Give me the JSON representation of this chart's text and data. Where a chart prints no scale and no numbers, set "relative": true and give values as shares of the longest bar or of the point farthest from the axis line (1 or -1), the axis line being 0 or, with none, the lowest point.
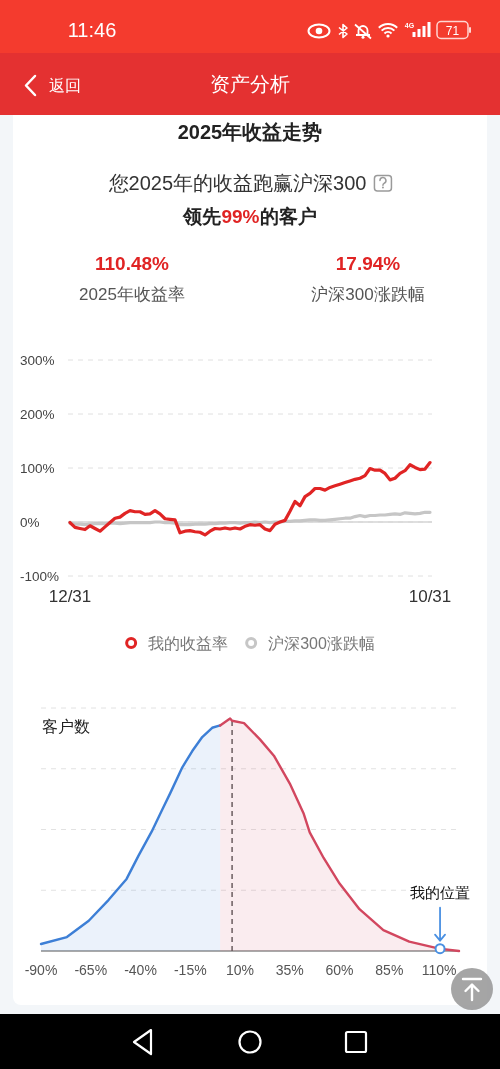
{
  "chart_data": [
    {
      "type": "other",
      "title": "资产分析",
      "annotations": [
        "11:46",
        "4G",
        "71",
        "返回"
      ]
    },
    {
      "type": "other",
      "title": "2025年收益走势",
      "subtitle": "您2025年的收益跑赢沪深300",
      "annotations": [
        "领先",
        "99%",
        "的客户",
        "110.48%",
        "2025年收益率",
        "17.94%",
        "沪深300涨跌幅"
      ]
    },
    {
      "type": "line",
      "categories": [
        "12/31",
        null,
        null,
        null,
        null,
        null,
        null,
        null,
        null,
        null,
        null,
        null,
        null,
        null,
        null,
        null,
        null,
        null,
        null,
        null,
        null,
        null,
        null,
        null,
        null,
        null,
        null,
        null,
        null,
        null,
        null,
        null,
        null,
        null,
        null,
        null,
        null,
        null,
        null,
        null,
        null,
        null,
        null,
        null,
        null,
        null,
        null,
        null,
        null,
        null,
        null,
        null,
        null,
        null,
        null,
        null,
        null,
        null,
        null,
        null,
        null,
        null,
        null,
        null,
        null,
        null,
        null,
        null,
        null,
        null,
        null,
        null,
        "10/31"
      ],
      "series": [
        {
          "name": "我的收益率",
          "color": "#e02424",
          "values": [
            -1,
            -10,
            -12,
            -14,
            -7,
            -12,
            -17,
            -9,
            -1,
            7,
            9,
            16,
            21,
            19,
            19,
            14,
            15,
            21,
            15,
            6,
            5,
            4,
            -20,
            -17,
            -16,
            -18,
            -19,
            -24,
            -17,
            -12,
            -13,
            -11,
            -13,
            -11,
            -13,
            -8,
            -5,
            -6,
            -5,
            -13,
            -16,
            -4,
            0,
            3,
            20,
            38,
            30,
            47,
            53,
            62,
            62,
            59,
            64,
            67,
            70,
            73,
            76,
            79,
            81,
            86,
            99,
            96,
            96,
            90,
            78,
            81,
            90,
            95,
            106,
            101,
            97,
            98,
            110
          ]
        },
        {
          "name": "沪深300涨跌幅",
          "color": "#c6c6c6",
          "values": [
            -2,
            -4,
            -4,
            -5,
            -4,
            -3,
            -3,
            -3,
            -2,
            -2,
            -3,
            -2,
            -1,
            -1,
            -1,
            -1,
            -1,
            0,
            0,
            -1,
            -1,
            -2,
            -5,
            -5,
            -5,
            -4,
            -4,
            -4,
            -3,
            -3,
            -2,
            -2,
            -1,
            -1,
            -2,
            -1,
            -1,
            0,
            -1,
            0,
            -1,
            0,
            0,
            1,
            1,
            2,
            2,
            3,
            4,
            4,
            3,
            3,
            4,
            5,
            6,
            7,
            7,
            10,
            12,
            10,
            12,
            12,
            13,
            13,
            14,
            15,
            14,
            17,
            16,
            15,
            16,
            18,
            18
          ]
        }
      ],
      "ylim": [
        -100,
        300
      ],
      "yticks": [
        {
          "value": -100,
          "label": "-100%"
        },
        {
          "value": 0,
          "label": "0%"
        },
        {
          "value": 100,
          "label": "100%"
        },
        {
          "value": 200,
          "label": "200%"
        },
        {
          "value": 300,
          "label": "300%"
        }
      ],
      "grid": "y",
      "legend": "bottom"
    },
    {
      "type": "area",
      "ylabel": "客户数",
      "relative": true,
      "xlim": [
        -90,
        120
      ],
      "xticks": [
        {
          "value": -90,
          "label": "-90%"
        },
        {
          "value": -65,
          "label": "-65%"
        },
        {
          "value": -40,
          "label": "-40%"
        },
        {
          "value": -15,
          "label": "-15%"
        },
        {
          "value": 10,
          "label": "10%"
        },
        {
          "value": 35,
          "label": "35%"
        },
        {
          "value": 60,
          "label": "60%"
        },
        {
          "value": 85,
          "label": "85%"
        },
        {
          "value": 110,
          "label": "110%"
        }
      ],
      "grid": "y",
      "series": [
        {
          "color": "#3d7fd6",
          "x": [
            -90,
            -77,
            -66,
            -56,
            -47,
            -41,
            -34,
            -29,
            -25,
            -19,
            -14,
            -9,
            -4,
            0
          ],
          "values": [
            0.03,
            0.06,
            0.13,
            0.22,
            0.31,
            0.41,
            0.52,
            0.61,
            0.68,
            0.79,
            0.86,
            0.92,
            0.96,
            0.97
          ]
        },
        {
          "color": "#d2475f",
          "x": [
            0,
            5,
            6,
            12,
            20,
            27,
            35,
            42,
            45,
            52,
            60,
            70,
            82,
            95,
            110,
            120
          ],
          "values": [
            0.97,
            1,
            0.99,
            0.98,
            0.91,
            0.84,
            0.72,
            0.59,
            0.51,
            0.4,
            0.29,
            0.18,
            0.09,
            0.04,
            0.01,
            0
          ]
        },
        {
          "type": "scatter",
          "color": "#4a90e2",
          "marker": "circle",
          "x": [
            110.48
          ],
          "values": [
            0.01
          ]
        }
      ],
      "ref_lines": [
        {
          "axis": "x",
          "value": 6,
          "color": "#555555",
          "line_style": "dashed"
        }
      ],
      "annotations": [
        {
          "text": "我的位置",
          "x": 110.48,
          "y": 0.01
        }
      ]
    }
  ]
}
